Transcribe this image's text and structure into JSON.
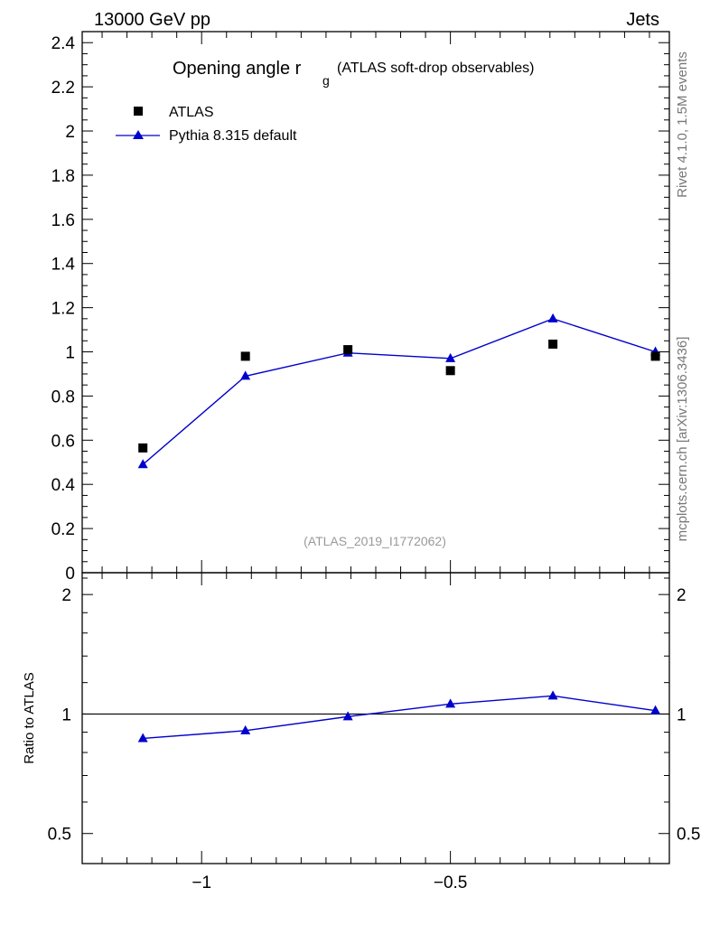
{
  "header": {
    "energy_label": "13000 GeV pp",
    "process_label": "Jets"
  },
  "side_labels": {
    "rivet": "Rivet 4.1.0,  1.5M events",
    "mcplots": "mcplots.cern.ch [arXiv:1306.3436]"
  },
  "chart_data": {
    "type": "scatter",
    "title": "Opening angle r",
    "title_sub": "g",
    "title_suffix": "(ATLAS soft-drop observables)",
    "analysis_label": "(ATLAS_2019_I1772062)",
    "xlim": [
      -1.24,
      -0.06
    ],
    "ylim": [
      0,
      2.45
    ],
    "xticks": [
      -1,
      -0.5
    ],
    "xtick_labels": [
      "−1",
      "−0.5"
    ],
    "yticks": [
      0,
      0.2,
      0.4,
      0.6,
      0.8,
      1,
      1.2,
      1.4,
      1.6,
      1.8,
      2,
      2.2,
      2.4
    ],
    "ytick_labels": [
      "0",
      "0.2",
      "0.4",
      "0.6",
      "0.8",
      "1",
      "1.2",
      "1.4",
      "1.6",
      "1.8",
      "2",
      "2.2",
      "2.4"
    ],
    "x": [
      -1.118,
      -0.912,
      -0.706,
      -0.5,
      -0.294,
      -0.088
    ],
    "series": [
      {
        "name": "ATLAS",
        "marker": "square",
        "color": "#000000",
        "values": [
          0.565,
          0.98,
          1.01,
          0.915,
          1.035,
          0.98
        ]
      },
      {
        "name": "Pythia 8.315 default",
        "marker": "triangle",
        "color": "#0000cc",
        "values": [
          0.49,
          0.89,
          0.995,
          0.97,
          1.15,
          1.0
        ]
      }
    ],
    "ratio": {
      "ylabel": "Ratio to ATLAS",
      "ylim": [
        0.42,
        2.27
      ],
      "ytick_labels": [
        "0.5",
        "1",
        "2"
      ],
      "yticks": [
        0.5,
        1,
        2
      ],
      "values": [
        0.868,
        0.908,
        0.985,
        1.06,
        1.111,
        1.02
      ]
    }
  }
}
